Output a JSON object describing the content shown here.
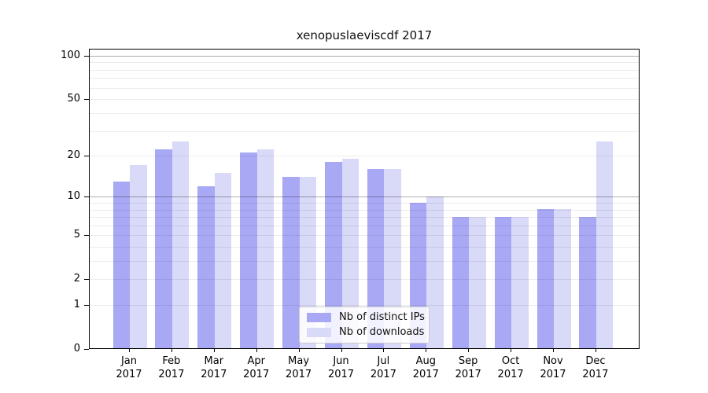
{
  "figure": {
    "background_color": "#ffffff"
  },
  "chart_data": {
    "type": "bar",
    "title": "xenopuslaeviscdf 2017",
    "xlabel": "",
    "ylabel": "",
    "y_scale": "log1p",
    "ylim": [
      0,
      112
    ],
    "y_tick_values": [
      100,
      50,
      20,
      10,
      5,
      2,
      1,
      0
    ],
    "y_tick_labels": [
      "100",
      "50",
      "20",
      "10",
      "5",
      "2",
      "1",
      "0"
    ],
    "y_gridlines_minor": [
      1,
      2,
      3,
      4,
      5,
      6,
      7,
      8,
      9,
      20,
      30,
      40,
      50,
      60,
      70,
      80,
      90
    ],
    "y_gridlines_major": [
      10,
      100
    ],
    "grid": "on",
    "legend_position": "lower center",
    "categories": [
      {
        "month": "Jan",
        "year": "2017"
      },
      {
        "month": "Feb",
        "year": "2017"
      },
      {
        "month": "Mar",
        "year": "2017"
      },
      {
        "month": "Apr",
        "year": "2017"
      },
      {
        "month": "May",
        "year": "2017"
      },
      {
        "month": "Jun",
        "year": "2017"
      },
      {
        "month": "Jul",
        "year": "2017"
      },
      {
        "month": "Aug",
        "year": "2017"
      },
      {
        "month": "Sep",
        "year": "2017"
      },
      {
        "month": "Oct",
        "year": "2017"
      },
      {
        "month": "Nov",
        "year": "2017"
      },
      {
        "month": "Dec",
        "year": "2017"
      }
    ],
    "series": [
      {
        "name": "Nb of distinct IPs",
        "color": "#a8a8f5",
        "values": [
          13,
          22,
          12,
          21,
          14,
          18,
          16,
          9,
          7,
          7,
          8,
          7
        ]
      },
      {
        "name": "Nb of downloads",
        "color": "#d9d9f8",
        "values": [
          17,
          25,
          15,
          22,
          14,
          19,
          16,
          10,
          7,
          7,
          8,
          25
        ]
      }
    ]
  }
}
